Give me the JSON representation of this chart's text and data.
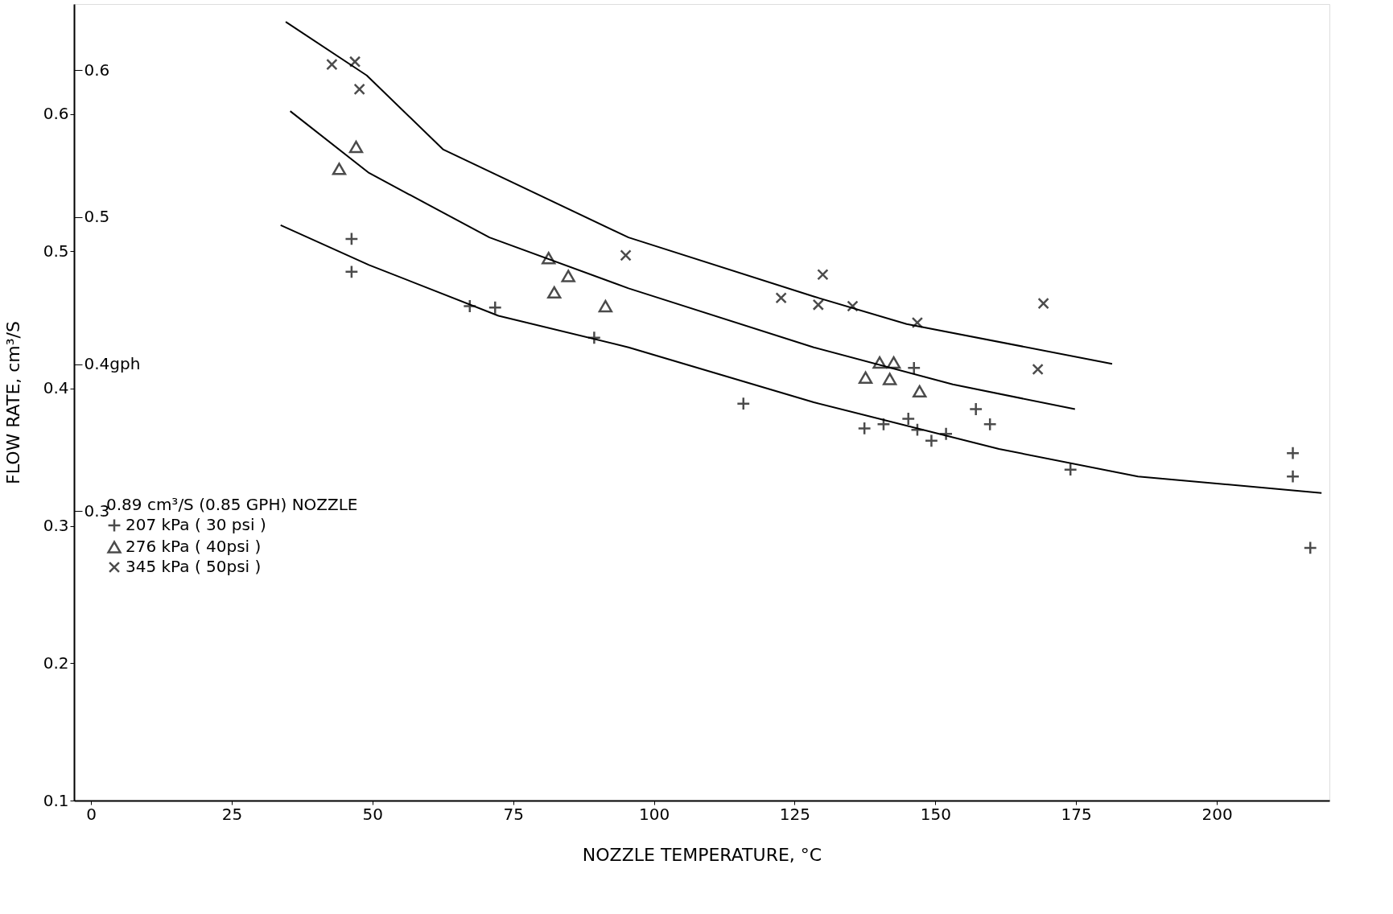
{
  "chart_data": {
    "type": "scatter",
    "xlabel": "NOZZLE TEMPERATURE, °C",
    "ylabel": "FLOW RATE, cm³/S",
    "legend_title": "0.89 cm³/S (0.85 GPH) NOZZLE",
    "legend": "left",
    "grid": false,
    "xlim": [
      -3,
      220
    ],
    "xticks": [
      0,
      25,
      50,
      75,
      100,
      125,
      150,
      175,
      200
    ],
    "ylim": [
      0.1,
      0.68
    ],
    "yticks": [
      0.1,
      0.2,
      0.3,
      0.4,
      0.5,
      0.6
    ],
    "y2lim": [
      0.103,
      0.645
    ],
    "y2ticks": [
      0.3,
      {
        "value": 0.4,
        "label": "0.4gph"
      },
      0.5,
      0.6
    ],
    "series": [
      {
        "name": "207 kPa ( 30 psi )",
        "marker": "plus",
        "color": "#000000",
        "x": [
          46.3,
          46.3,
          67.3,
          71.8,
          89.4,
          115.9,
          137.4,
          140.8,
          145.2,
          146.2,
          146.8,
          149.3,
          151.9,
          157.2,
          159.7,
          174.0,
          213.5,
          213.5,
          216.6
        ],
        "values": [
          0.509,
          0.485,
          0.46,
          0.459,
          0.437,
          0.389,
          0.371,
          0.374,
          0.378,
          0.415,
          0.37,
          0.362,
          0.367,
          0.385,
          0.374,
          0.341,
          0.353,
          0.336,
          0.284
        ]
      },
      {
        "name": "276 kPa ( 40psi )",
        "marker": "triangle",
        "color": "#000000",
        "x": [
          44.1,
          47.1,
          81.3,
          82.3,
          84.8,
          91.4,
          137.6,
          140.1,
          142.6,
          141.9,
          147.2
        ],
        "values": [
          0.56,
          0.576,
          0.495,
          0.47,
          0.482,
          0.46,
          0.408,
          0.419,
          0.419,
          0.407,
          0.398
        ]
      },
      {
        "name": "345 kPa ( 50psi )",
        "marker": "cross",
        "color": "#000000",
        "x": [
          42.8,
          46.9,
          47.7,
          95.0,
          122.6,
          130.0,
          129.2,
          135.3,
          146.8,
          169.2,
          168.2
        ],
        "values": [
          0.636,
          0.638,
          0.618,
          0.497,
          0.466,
          0.483,
          0.461,
          0.46,
          0.448,
          0.462,
          0.414
        ]
      },
      {
        "type": "line",
        "color": "#000000",
        "x": [
          33.7,
          49.4,
          72.4,
          95.5,
          128.4,
          161.3,
          186.0,
          218.6
        ],
        "values": [
          0.519,
          0.49,
          0.453,
          0.43,
          0.39,
          0.356,
          0.336,
          0.324
        ]
      },
      {
        "type": "line",
        "color": "#000000",
        "x": [
          35.4,
          49.4,
          70.8,
          95.5,
          128.4,
          153.1,
          174.8
        ],
        "values": [
          0.602,
          0.557,
          0.51,
          0.473,
          0.43,
          0.403,
          0.385
        ]
      },
      {
        "type": "line",
        "color": "#000000",
        "x": [
          34.6,
          49.0,
          62.6,
          95.5,
          128.4,
          144.9,
          181.4
        ],
        "values": [
          0.667,
          0.628,
          0.574,
          0.51,
          0.467,
          0.447,
          0.418
        ]
      }
    ]
  }
}
